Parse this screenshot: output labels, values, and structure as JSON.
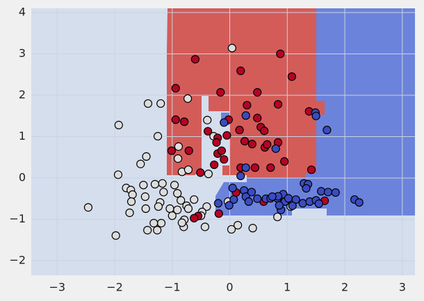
{
  "chart_data": {
    "type": "scatter",
    "xlim": [
      -3.45,
      3.22
    ],
    "ylim": [
      -2.35,
      4.1
    ],
    "xticks": [
      {
        "value": -3,
        "label": "−3"
      },
      {
        "value": -2,
        "label": "−2"
      },
      {
        "value": -1,
        "label": "−1"
      },
      0,
      1,
      2,
      3
    ],
    "yticks": [
      {
        "value": -2,
        "label": "−2"
      },
      {
        "value": -1,
        "label": "−1"
      },
      0,
      1,
      2,
      3,
      4
    ],
    "grid": true,
    "series": [
      {
        "color": "#dddddd",
        "x": [
          0.04,
          -0.73,
          -1.42,
          -1.2,
          -1.93,
          -0.39,
          -0.28,
          -1.25,
          -0.89,
          -1.45,
          -1.55,
          -0.9,
          -0.83,
          -0.72,
          -1.94,
          -0.37,
          -1.8,
          -1.72,
          -1.69,
          -1.71,
          -1.74,
          -1.5,
          -1.47,
          -1.46,
          -1.17,
          -1.15,
          -1.21,
          -1.3,
          -0.96,
          -0.91,
          -0.85,
          -0.62,
          -0.75,
          -1.24,
          -1.04,
          -0.91,
          -0.72,
          -1.0,
          -1.19,
          -1.32,
          -1.43,
          -1.26,
          -0.79,
          -0.8,
          -0.83,
          -0.4,
          -0.48,
          -0.5,
          -0.43,
          -0.03,
          0.14,
          0.03,
          0.4,
          0.83,
          1.06,
          -1.98,
          -2.46
        ],
        "values": [
          3.14,
          1.92,
          1.8,
          1.8,
          1.28,
          1.4,
          1.01,
          1.01,
          0.76,
          0.52,
          0.34,
          0.47,
          0.15,
          0.2,
          0.08,
          0.1,
          -0.24,
          -0.29,
          -0.4,
          -0.57,
          -0.84,
          -0.17,
          -0.45,
          -0.74,
          -0.13,
          -0.34,
          -0.59,
          -0.15,
          -0.17,
          -0.37,
          -0.54,
          -0.52,
          -0.67,
          -0.69,
          -0.74,
          -0.77,
          -0.74,
          -0.91,
          -1.09,
          -1.09,
          -1.26,
          -1.26,
          -1.01,
          -1.18,
          -1.08,
          -0.69,
          -0.82,
          -0.91,
          -1.18,
          -0.57,
          -1.14,
          -1.24,
          -1.21,
          -0.94,
          -0.69,
          -1.39,
          -0.71
        ]
      },
      {
        "color": "#b40426",
        "x": [
          -0.6,
          0.88,
          0.19,
          1.08,
          -0.94,
          -0.16,
          0.48,
          0.84,
          0.3,
          1.38,
          -0.94,
          -0.79,
          -0.02,
          0.48,
          0.54,
          0.6,
          -0.38,
          -0.21,
          0.17,
          -0.23,
          -0.05,
          0.26,
          0.39,
          0.61,
          0.65,
          0.84,
          -1.01,
          -0.71,
          -0.21,
          -0.14,
          -0.1,
          0.95,
          0.19,
          0.44,
          0.71,
          1.42,
          -0.27,
          -0.51,
          0.11,
          0.59,
          1.65,
          -0.55,
          -0.62,
          -0.19
        ],
        "values": [
          2.87,
          3.0,
          2.59,
          2.45,
          2.17,
          2.07,
          2.07,
          1.78,
          1.76,
          1.61,
          1.41,
          1.36,
          1.41,
          1.45,
          1.23,
          1.14,
          1.13,
          0.97,
          1.16,
          0.86,
          1.03,
          0.89,
          0.82,
          0.74,
          0.81,
          0.86,
          0.66,
          0.66,
          0.59,
          0.66,
          0.45,
          0.4,
          0.25,
          0.25,
          0.25,
          0.2,
          0.32,
          0.13,
          -0.35,
          -0.57,
          -0.55,
          -0.92,
          -0.97,
          -0.86
        ]
      },
      {
        "color": "#3b4cc0",
        "x": [
          1.49,
          1.5,
          -0.1,
          0.28,
          1.69,
          0.8,
          0.28,
          0.19,
          0.05,
          0.25,
          0.38,
          -0.2,
          0.07,
          -0.01,
          0.28,
          0.33,
          0.48,
          0.63,
          0.71,
          0.83,
          0.93,
          0.96,
          1.02,
          0.84,
          0.89,
          0.86,
          0.74,
          1.15,
          1.29,
          1.36,
          1.33,
          1.27,
          1.39,
          1.5,
          1.59,
          1.71,
          1.55,
          1.09,
          1.84,
          2.17,
          2.25
        ],
        "values": [
          1.58,
          1.5,
          1.34,
          1.51,
          1.16,
          0.71,
          0.25,
          0.05,
          -0.24,
          -0.3,
          -0.34,
          -0.61,
          -0.52,
          -0.66,
          -0.45,
          -0.57,
          -0.5,
          -0.5,
          -0.49,
          -0.49,
          -0.39,
          -0.57,
          -0.49,
          -0.44,
          -0.77,
          -0.66,
          -0.45,
          -0.52,
          -0.13,
          -0.15,
          -0.25,
          -0.61,
          -0.57,
          -0.54,
          -0.32,
          -0.34,
          -0.62,
          -0.67,
          -0.35,
          -0.52,
          -0.59
        ]
      }
    ]
  }
}
